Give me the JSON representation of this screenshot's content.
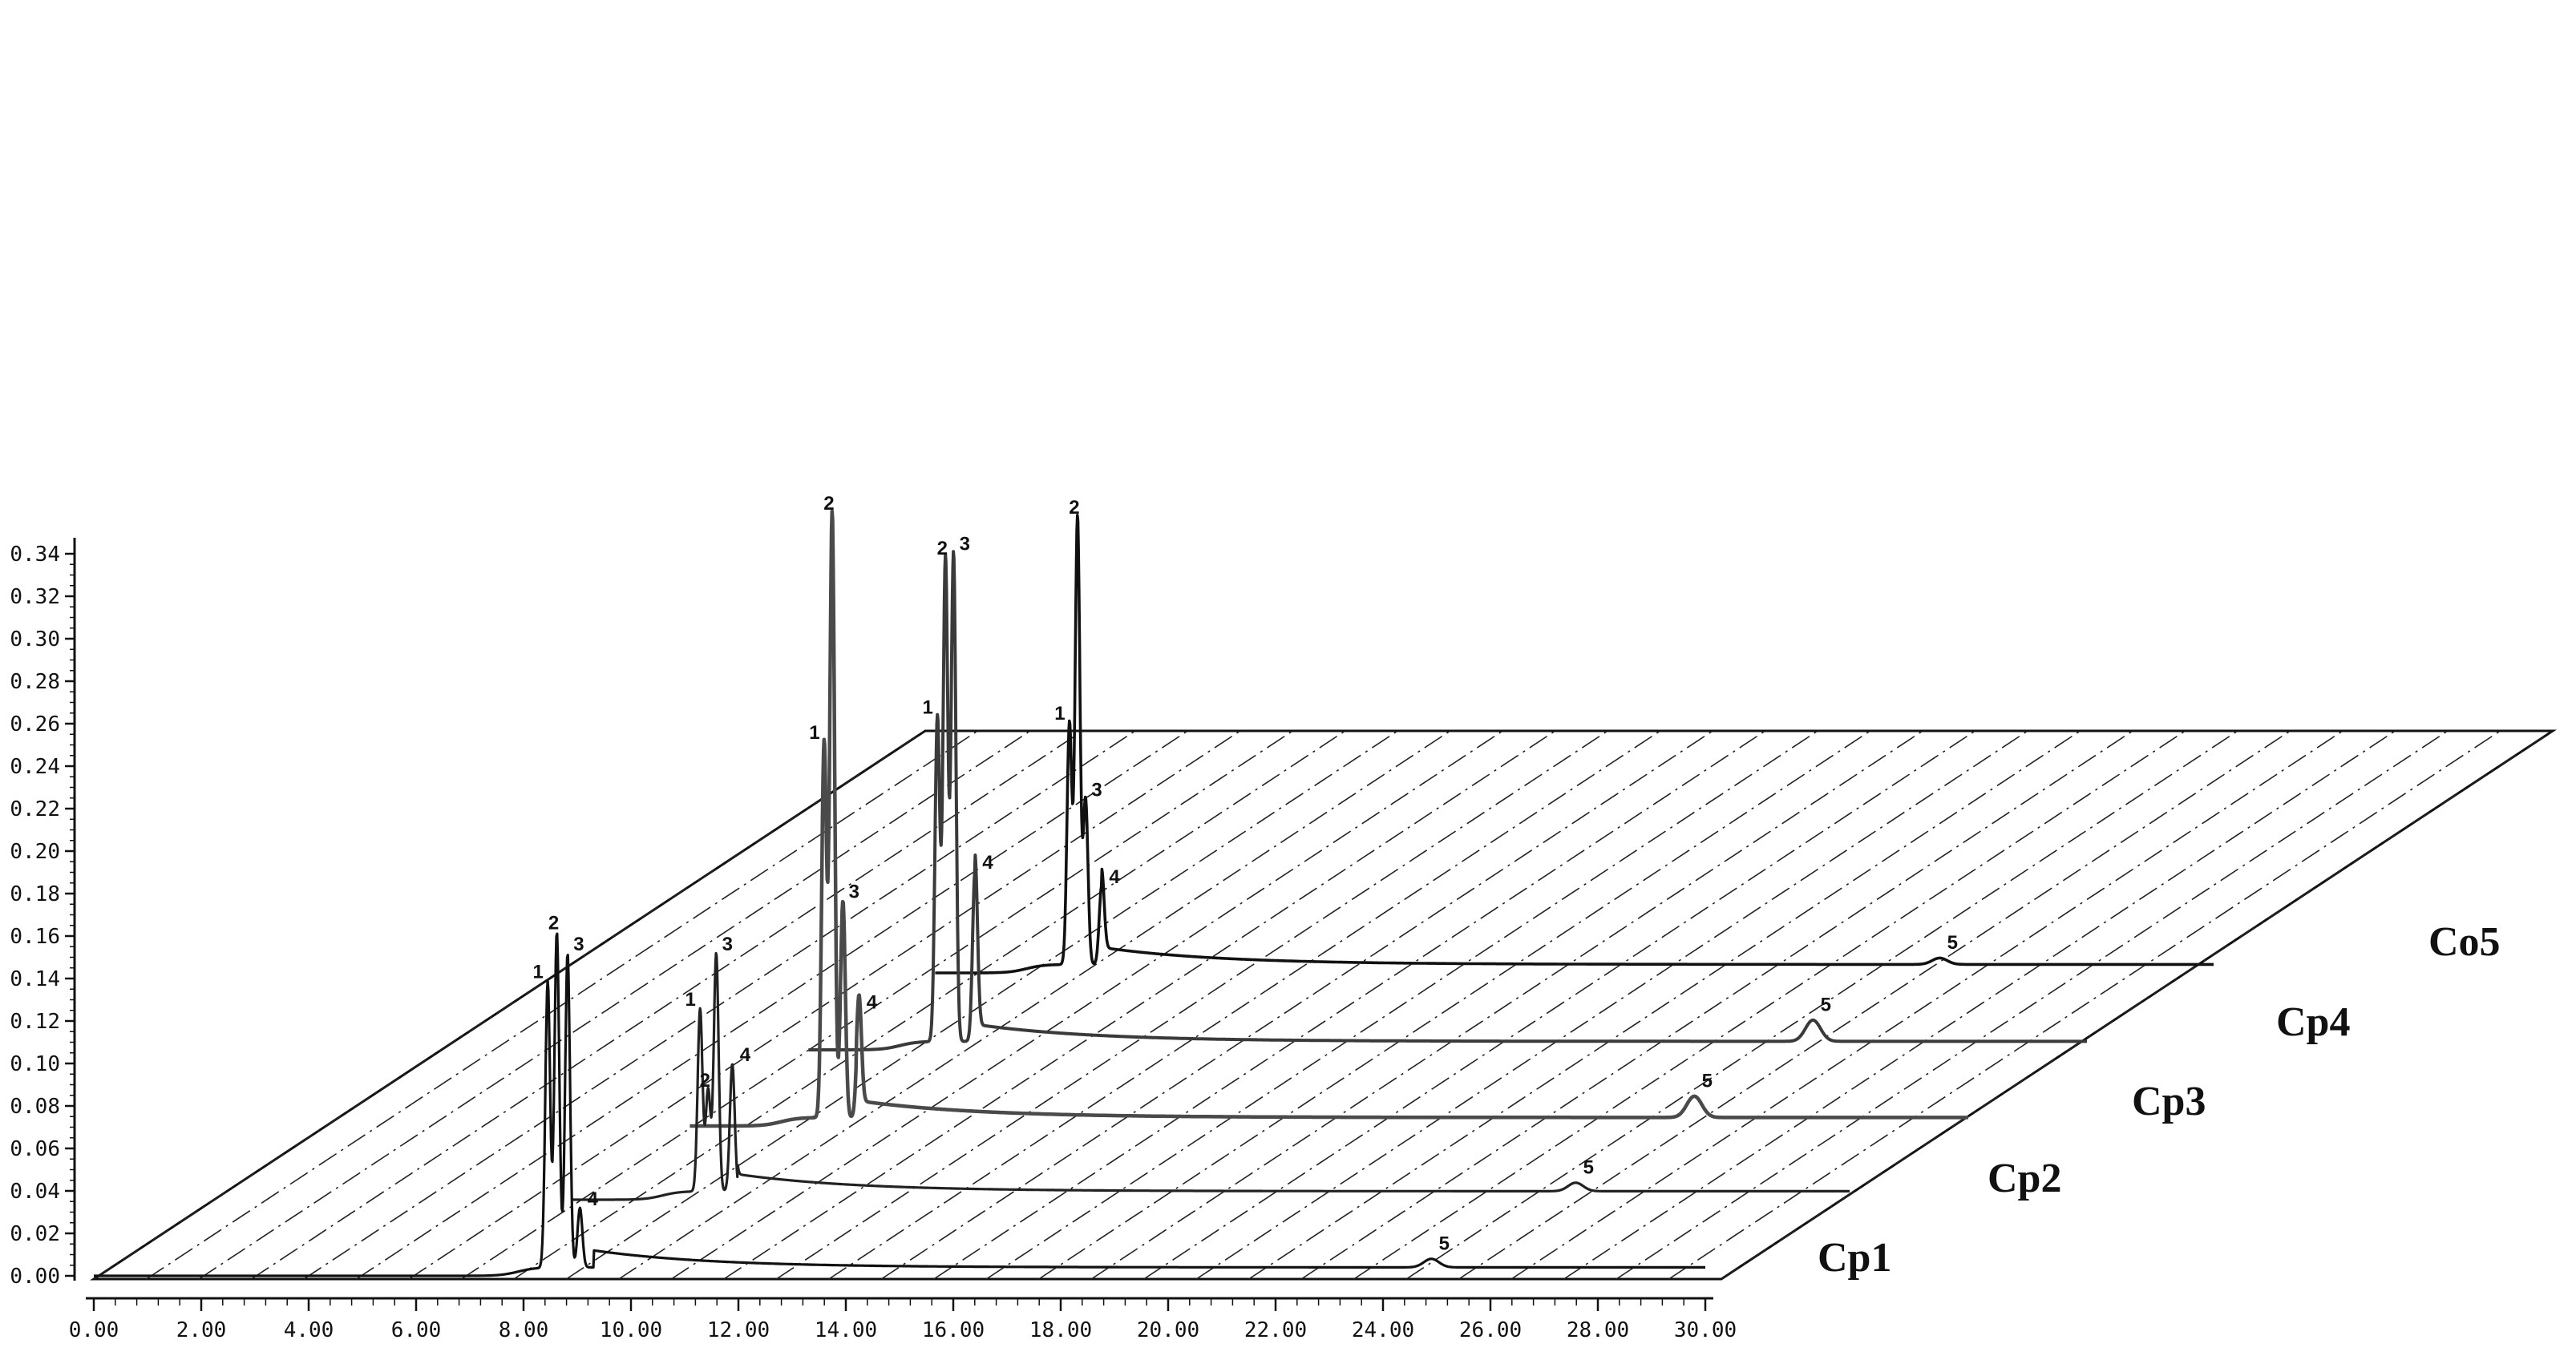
{
  "chart_data": {
    "type": "line",
    "y_axis": {
      "ticks": [
        "0.00",
        "0.02",
        "0.04",
        "0.06",
        "0.08",
        "0.10",
        "0.12",
        "0.14",
        "0.16",
        "0.18",
        "0.20",
        "0.22",
        "0.24",
        "0.26",
        "0.28",
        "0.30",
        "0.32",
        "0.34"
      ],
      "range": [
        0,
        0.34
      ]
    },
    "x_axis": {
      "ticks": [
        "0.00",
        "2.00",
        "4.00",
        "6.00",
        "8.00",
        "10.00",
        "12.00",
        "14.00",
        "16.00",
        "18.00",
        "20.00",
        "22.00",
        "24.00",
        "26.00",
        "28.00",
        "30.00"
      ],
      "range": [
        0,
        30
      ]
    },
    "grid": "oblique floor grid",
    "colors": {
      "Cp1": "#111111",
      "Cp2": "#222222",
      "Cp3": "#555555",
      "Cp4": "#444444",
      "Co5": "#111111"
    },
    "series": [
      {
        "name": "Cp1",
        "peaks": [
          {
            "label": "1",
            "x": 8.45,
            "y": 0.135
          },
          {
            "label": "2",
            "x": 8.62,
            "y": 0.158
          },
          {
            "label": "3",
            "x": 8.82,
            "y": 0.148
          },
          {
            "label": "4",
            "x": 9.05,
            "y": 0.028
          },
          {
            "label": "5",
            "x": 24.9,
            "y": 0.004
          }
        ]
      },
      {
        "name": "Cp2",
        "peaks": [
          {
            "label": "1",
            "x": 8.6,
            "y": 0.086
          },
          {
            "label": "2",
            "x": 8.75,
            "y": 0.048
          },
          {
            "label": "3",
            "x": 8.9,
            "y": 0.112
          },
          {
            "label": "4",
            "x": 9.2,
            "y": 0.06
          },
          {
            "label": "5",
            "x": 24.9,
            "y": 0.004
          }
        ]
      },
      {
        "name": "Cp3",
        "peaks": [
          {
            "label": "1",
            "x": 8.7,
            "y": 0.177
          },
          {
            "label": "2",
            "x": 8.85,
            "y": 0.285
          },
          {
            "label": "3",
            "x": 9.05,
            "y": 0.102
          },
          {
            "label": "4",
            "x": 9.35,
            "y": 0.05
          },
          {
            "label": "5",
            "x": 24.9,
            "y": 0.01
          }
        ]
      },
      {
        "name": "Cp4",
        "peaks": [
          {
            "label": "1",
            "x": 8.6,
            "y": 0.153
          },
          {
            "label": "2",
            "x": 8.75,
            "y": 0.228
          },
          {
            "label": "3",
            "x": 8.9,
            "y": 0.23
          },
          {
            "label": "4",
            "x": 9.3,
            "y": 0.08
          },
          {
            "label": "5",
            "x": 24.9,
            "y": 0.01
          }
        ]
      },
      {
        "name": "Co5",
        "peaks": [
          {
            "label": "1",
            "x": 8.7,
            "y": 0.114
          },
          {
            "label": "2",
            "x": 8.85,
            "y": 0.211
          },
          {
            "label": "3",
            "x": 9.0,
            "y": 0.078
          },
          {
            "label": "4",
            "x": 9.3,
            "y": 0.037
          },
          {
            "label": "5",
            "x": 24.9,
            "y": 0.003
          }
        ]
      }
    ]
  }
}
